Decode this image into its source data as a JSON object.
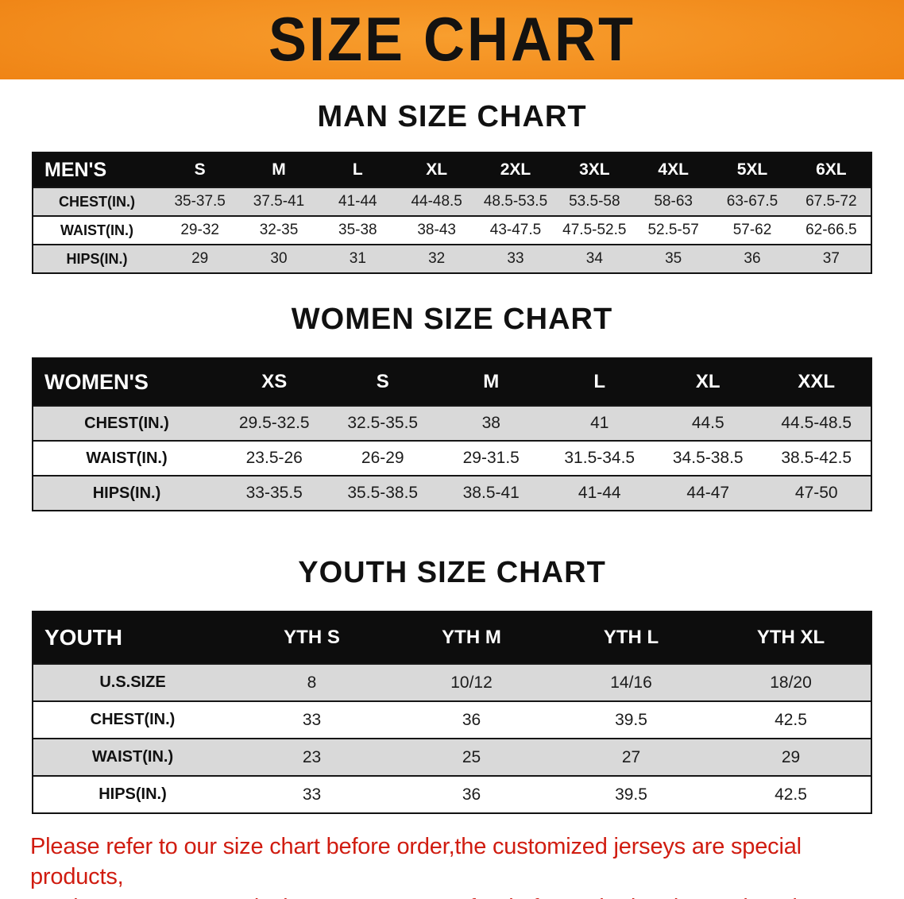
{
  "banner": {
    "title": "SIZE CHART"
  },
  "sections": [
    {
      "heading": "MAN SIZE CHART",
      "table": {
        "header": [
          "MEN'S",
          "S",
          "M",
          "L",
          "XL",
          "2XL",
          "3XL",
          "4XL",
          "5XL",
          "6XL"
        ],
        "rows": [
          {
            "label": "CHEST(IN.)",
            "values": [
              "35-37.5",
              "37.5-41",
              "41-44",
              "44-48.5",
              "48.5-53.5",
              "53.5-58",
              "58-63",
              "63-67.5",
              "67.5-72"
            ]
          },
          {
            "label": "WAIST(IN.)",
            "values": [
              "29-32",
              "32-35",
              "35-38",
              "38-43",
              "43-47.5",
              "47.5-52.5",
              "52.5-57",
              "57-62",
              "62-66.5"
            ]
          },
          {
            "label": "HIPS(IN.)",
            "values": [
              "29",
              "30",
              "31",
              "32",
              "33",
              "34",
              "35",
              "36",
              "37"
            ]
          }
        ]
      }
    },
    {
      "heading": "WOMEN SIZE CHART",
      "table": {
        "header": [
          "WOMEN'S",
          "XS",
          "S",
          "M",
          "L",
          "XL",
          "XXL"
        ],
        "rows": [
          {
            "label": "CHEST(IN.)",
            "values": [
              "29.5-32.5",
              "32.5-35.5",
              "38",
              "41",
              "44.5",
              "44.5-48.5"
            ]
          },
          {
            "label": "WAIST(IN.)",
            "values": [
              "23.5-26",
              "26-29",
              "29-31.5",
              "31.5-34.5",
              "34.5-38.5",
              "38.5-42.5"
            ]
          },
          {
            "label": "HIPS(IN.)",
            "values": [
              "33-35.5",
              "35.5-38.5",
              "38.5-41",
              "41-44",
              "44-47",
              "47-50"
            ]
          }
        ]
      }
    },
    {
      "heading": "YOUTH SIZE CHART",
      "table": {
        "header": [
          "YOUTH",
          "YTH S",
          "YTH M",
          "YTH L",
          "YTH XL"
        ],
        "rows": [
          {
            "label": "U.S.SIZE",
            "values": [
              "8",
              "10/12",
              "14/16",
              "18/20"
            ]
          },
          {
            "label": "CHEST(IN.)",
            "values": [
              "33",
              "36",
              "39.5",
              "42.5"
            ]
          },
          {
            "label": "WAIST(IN.)",
            "values": [
              "23",
              "25",
              "27",
              "29"
            ]
          },
          {
            "label": "HIPS(IN.)",
            "values": [
              "33",
              "36",
              "39.5",
              "42.5"
            ]
          }
        ]
      }
    }
  ],
  "footer": {
    "lines": [
      "Please refer to our size chart before order,the customized jerseys are special products,",
      "we don't accept cancel, change, teturn or refund after order has been placed!"
    ]
  },
  "colors": {
    "banner_bg": "#EF8314",
    "header_bg": "#0D0D0D",
    "stripe": "#D9D9D9",
    "footer_text": "#D01C10"
  }
}
